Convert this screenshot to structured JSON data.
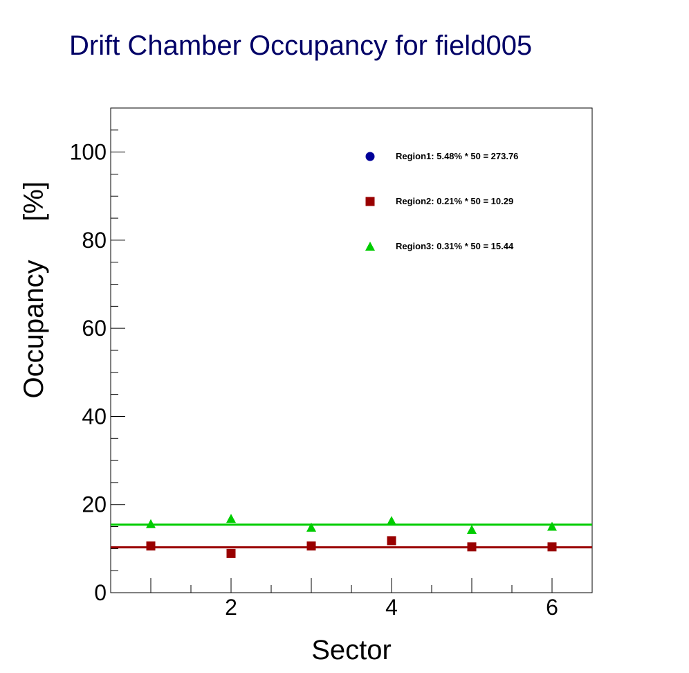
{
  "title": "Drift Chamber Occupancy for field005",
  "chart_data": {
    "type": "scatter",
    "title": "Drift Chamber Occupancy for field005",
    "xlabel": "Sector",
    "ylabel": "Occupancy     [%]",
    "xlim": [
      0.5,
      6.5
    ],
    "ylim": [
      0,
      110
    ],
    "x_ticks": [
      2,
      4,
      6
    ],
    "y_ticks": [
      0,
      20,
      40,
      60,
      80,
      100
    ],
    "grid": false,
    "legend_position": "top-right",
    "series": [
      {
        "name": "Region1: 5.48% * 50 = 273.76",
        "marker": "circle",
        "color": "#000099",
        "x": [],
        "y": [],
        "fit_level": null
      },
      {
        "name": "Region2: 0.21% * 50 = 10.29",
        "marker": "square",
        "color": "#990000",
        "x": [
          1,
          2,
          3,
          4,
          5,
          6
        ],
        "y": [
          10.6,
          8.9,
          10.6,
          11.8,
          10.4,
          10.4
        ],
        "fit_level": 10.29
      },
      {
        "name": "Region3: 0.31% * 50 = 15.44",
        "marker": "triangle",
        "color": "#00cc00",
        "x": [
          1,
          2,
          3,
          4,
          5,
          6
        ],
        "y": [
          15.6,
          16.8,
          14.8,
          16.3,
          14.3,
          15.0
        ],
        "fit_level": 15.44
      }
    ]
  }
}
